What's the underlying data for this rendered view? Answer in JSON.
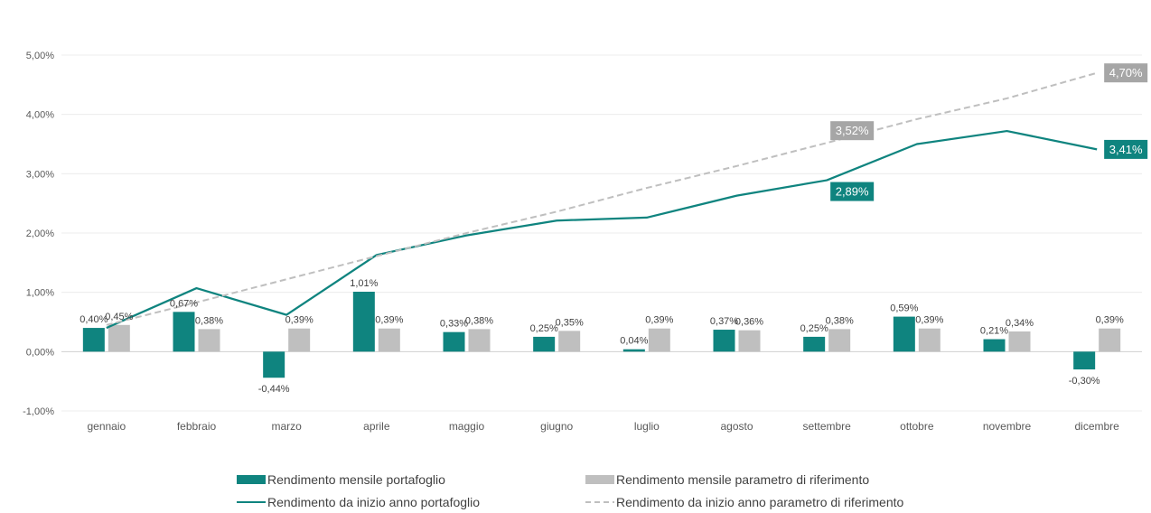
{
  "chart_data": {
    "type": "bar",
    "categories": [
      "gennaio",
      "febbraio",
      "marzo",
      "aprile",
      "maggio",
      "giugno",
      "luglio",
      "agosto",
      "settembre",
      "ottobre",
      "novembre",
      "dicembre"
    ],
    "ylim": [
      -1.0,
      5.0
    ],
    "yticks": [
      -1.0,
      0.0,
      1.0,
      2.0,
      3.0,
      4.0,
      5.0
    ],
    "ytick_labels": [
      "-1,00%",
      "0,00%",
      "1,00%",
      "2,00%",
      "3,00%",
      "4,00%",
      "5,00%"
    ],
    "grid": true,
    "legend_position": "bottom",
    "series": [
      {
        "name": "Rendimento mensile portafoglio",
        "kind": "bar",
        "color": "#0f847f",
        "values": [
          0.4,
          0.67,
          -0.44,
          1.01,
          0.33,
          0.25,
          0.04,
          0.37,
          0.25,
          0.59,
          0.21,
          -0.3
        ],
        "labels": [
          "0,40%",
          "0,67%",
          "-0,44%",
          "1,01%",
          "0,33%",
          "0,25%",
          "0,04%",
          "0,37%",
          "0,25%",
          "0,59%",
          "0,21%",
          "-0,30%"
        ]
      },
      {
        "name": "Rendimento mensile parametro di riferimento",
        "kind": "bar",
        "color": "#bfbfbf",
        "values": [
          0.45,
          0.38,
          0.39,
          0.39,
          0.38,
          0.35,
          0.39,
          0.36,
          0.38,
          0.39,
          0.34,
          0.39
        ],
        "labels": [
          "0,45%",
          "0,38%",
          "0,39%",
          "0,39%",
          "0,38%",
          "0,35%",
          "0,39%",
          "0,36%",
          "0,38%",
          "0,39%",
          "0,34%",
          "0,39%"
        ]
      },
      {
        "name": "Rendimento da inizio anno portafoglio",
        "kind": "line",
        "color": "#0f847f",
        "values": [
          0.4,
          1.07,
          0.62,
          1.63,
          1.96,
          2.21,
          2.26,
          2.63,
          2.89,
          3.5,
          3.72,
          3.41
        ]
      },
      {
        "name": "Rendimento da inizio anno parametro di riferimento",
        "kind": "line-dashed",
        "color": "#bfbfbf",
        "values": [
          0.45,
          0.83,
          1.22,
          1.61,
          2.0,
          2.36,
          2.76,
          3.13,
          3.52,
          3.92,
          4.27,
          4.7
        ]
      }
    ],
    "callouts": [
      {
        "series": 3,
        "index": 8,
        "text": "3,52%",
        "color": "#a6a6a6",
        "placement": "above"
      },
      {
        "series": 2,
        "index": 8,
        "text": "2,89%",
        "color": "#0f847f",
        "placement": "below"
      },
      {
        "series": 3,
        "index": 11,
        "text": "4,70%",
        "color": "#a6a6a6",
        "placement": "end"
      },
      {
        "series": 2,
        "index": 11,
        "text": "3,41%",
        "color": "#0f847f",
        "placement": "end"
      }
    ]
  }
}
